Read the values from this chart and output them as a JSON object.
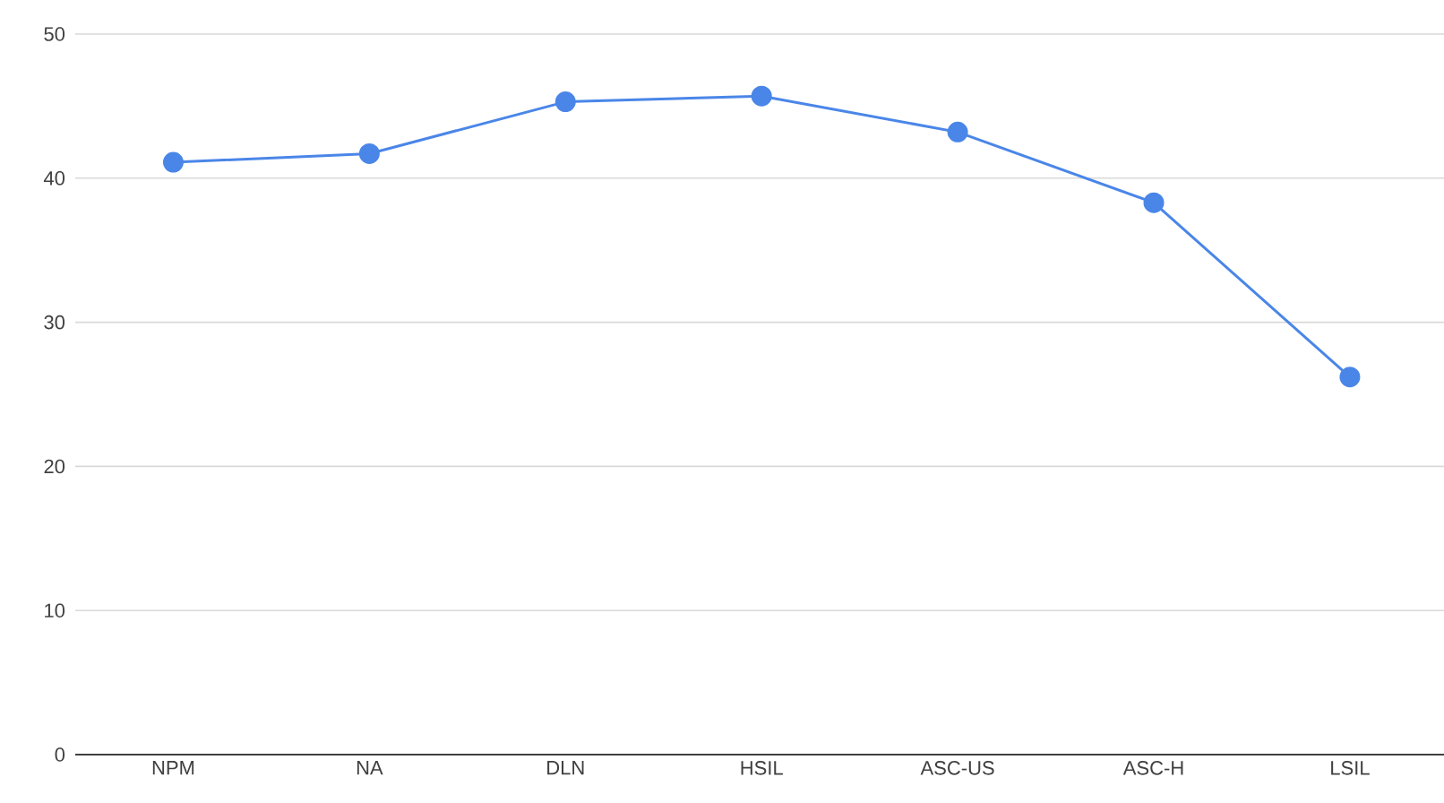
{
  "chart_data": {
    "type": "line",
    "categories": [
      "NPM",
      "NA",
      "DLN",
      "HSIL",
      "ASC-US",
      "ASC-H",
      "LSIL"
    ],
    "series": [
      {
        "color": "#4a86e8",
        "values": [
          41.1,
          41.7,
          45.3,
          45.7,
          43.2,
          38.3,
          26.2
        ]
      }
    ],
    "ylim": [
      0,
      50
    ],
    "yticks": [
      0,
      10,
      20,
      30,
      40,
      50
    ],
    "grid": "y",
    "marker": "circle"
  }
}
